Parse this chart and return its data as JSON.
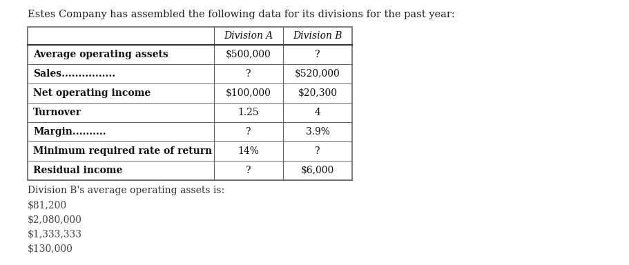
{
  "title": "Estes Company has assembled the following data for its divisions for the past year:",
  "col_headers": [
    "",
    "Division A",
    "Division B"
  ],
  "rows": [
    [
      "Average operating assets",
      "$500,000",
      "?"
    ],
    [
      "Sales................",
      "?",
      "$520,000"
    ],
    [
      "Net operating income",
      "$100,000",
      "$20,300"
    ],
    [
      "Turnover",
      "1.25",
      "4"
    ],
    [
      "Margin..........",
      "?",
      "3.9%"
    ],
    [
      "Minimum required rate of return",
      "14%",
      "?"
    ],
    [
      "Residual income",
      "?",
      "$6,000"
    ]
  ],
  "question": "Division B's average operating assets is:",
  "choices": [
    "$81,200",
    "$2,080,000",
    "$1,333,333",
    "$130,000"
  ],
  "bg_color": "#ffffff",
  "table_edge_color": "#666666",
  "bold_row_labels": [
    "Average operating assets",
    "Sales................",
    "Net operating income",
    "Turnover",
    "Margin..........",
    "Minimum required rate of return",
    "Residual income"
  ],
  "title_fontsize": 10.5,
  "table_fontsize": 10.0,
  "question_fontsize": 10.0,
  "choice_fontsize": 10.0
}
